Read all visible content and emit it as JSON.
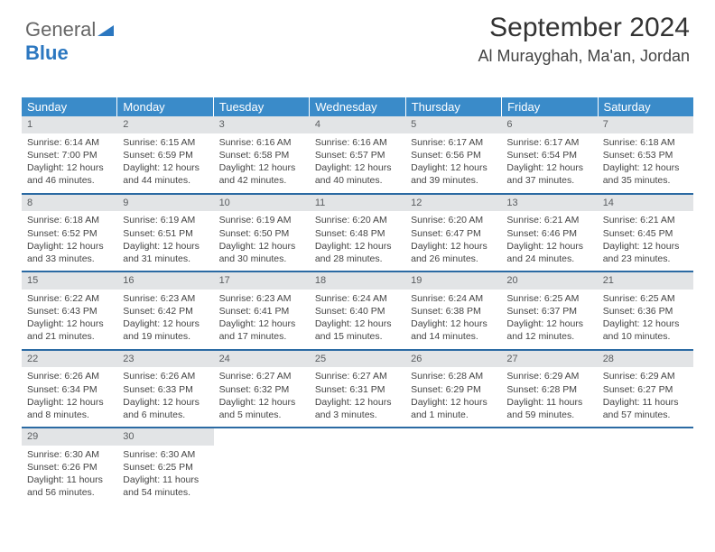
{
  "logo": {
    "part1": "General",
    "part2": "Blue"
  },
  "header": {
    "month_title": "September 2024",
    "location": "Al Murayghah, Ma'an, Jordan"
  },
  "colors": {
    "header_bg": "#3a8bc9",
    "row_border": "#2b6aa3",
    "daynum_bg": "#e2e4e6",
    "logo_blue": "#2b77c0"
  },
  "dow": [
    "Sunday",
    "Monday",
    "Tuesday",
    "Wednesday",
    "Thursday",
    "Friday",
    "Saturday"
  ],
  "days": [
    {
      "n": 1,
      "sr": "6:14 AM",
      "ss": "7:00 PM",
      "dl": "12 hours and 46 minutes."
    },
    {
      "n": 2,
      "sr": "6:15 AM",
      "ss": "6:59 PM",
      "dl": "12 hours and 44 minutes."
    },
    {
      "n": 3,
      "sr": "6:16 AM",
      "ss": "6:58 PM",
      "dl": "12 hours and 42 minutes."
    },
    {
      "n": 4,
      "sr": "6:16 AM",
      "ss": "6:57 PM",
      "dl": "12 hours and 40 minutes."
    },
    {
      "n": 5,
      "sr": "6:17 AM",
      "ss": "6:56 PM",
      "dl": "12 hours and 39 minutes."
    },
    {
      "n": 6,
      "sr": "6:17 AM",
      "ss": "6:54 PM",
      "dl": "12 hours and 37 minutes."
    },
    {
      "n": 7,
      "sr": "6:18 AM",
      "ss": "6:53 PM",
      "dl": "12 hours and 35 minutes."
    },
    {
      "n": 8,
      "sr": "6:18 AM",
      "ss": "6:52 PM",
      "dl": "12 hours and 33 minutes."
    },
    {
      "n": 9,
      "sr": "6:19 AM",
      "ss": "6:51 PM",
      "dl": "12 hours and 31 minutes."
    },
    {
      "n": 10,
      "sr": "6:19 AM",
      "ss": "6:50 PM",
      "dl": "12 hours and 30 minutes."
    },
    {
      "n": 11,
      "sr": "6:20 AM",
      "ss": "6:48 PM",
      "dl": "12 hours and 28 minutes."
    },
    {
      "n": 12,
      "sr": "6:20 AM",
      "ss": "6:47 PM",
      "dl": "12 hours and 26 minutes."
    },
    {
      "n": 13,
      "sr": "6:21 AM",
      "ss": "6:46 PM",
      "dl": "12 hours and 24 minutes."
    },
    {
      "n": 14,
      "sr": "6:21 AM",
      "ss": "6:45 PM",
      "dl": "12 hours and 23 minutes."
    },
    {
      "n": 15,
      "sr": "6:22 AM",
      "ss": "6:43 PM",
      "dl": "12 hours and 21 minutes."
    },
    {
      "n": 16,
      "sr": "6:23 AM",
      "ss": "6:42 PM",
      "dl": "12 hours and 19 minutes."
    },
    {
      "n": 17,
      "sr": "6:23 AM",
      "ss": "6:41 PM",
      "dl": "12 hours and 17 minutes."
    },
    {
      "n": 18,
      "sr": "6:24 AM",
      "ss": "6:40 PM",
      "dl": "12 hours and 15 minutes."
    },
    {
      "n": 19,
      "sr": "6:24 AM",
      "ss": "6:38 PM",
      "dl": "12 hours and 14 minutes."
    },
    {
      "n": 20,
      "sr": "6:25 AM",
      "ss": "6:37 PM",
      "dl": "12 hours and 12 minutes."
    },
    {
      "n": 21,
      "sr": "6:25 AM",
      "ss": "6:36 PM",
      "dl": "12 hours and 10 minutes."
    },
    {
      "n": 22,
      "sr": "6:26 AM",
      "ss": "6:34 PM",
      "dl": "12 hours and 8 minutes."
    },
    {
      "n": 23,
      "sr": "6:26 AM",
      "ss": "6:33 PM",
      "dl": "12 hours and 6 minutes."
    },
    {
      "n": 24,
      "sr": "6:27 AM",
      "ss": "6:32 PM",
      "dl": "12 hours and 5 minutes."
    },
    {
      "n": 25,
      "sr": "6:27 AM",
      "ss": "6:31 PM",
      "dl": "12 hours and 3 minutes."
    },
    {
      "n": 26,
      "sr": "6:28 AM",
      "ss": "6:29 PM",
      "dl": "12 hours and 1 minute."
    },
    {
      "n": 27,
      "sr": "6:29 AM",
      "ss": "6:28 PM",
      "dl": "11 hours and 59 minutes."
    },
    {
      "n": 28,
      "sr": "6:29 AM",
      "ss": "6:27 PM",
      "dl": "11 hours and 57 minutes."
    },
    {
      "n": 29,
      "sr": "6:30 AM",
      "ss": "6:26 PM",
      "dl": "11 hours and 56 minutes."
    },
    {
      "n": 30,
      "sr": "6:30 AM",
      "ss": "6:25 PM",
      "dl": "11 hours and 54 minutes."
    }
  ],
  "labels": {
    "sunrise": "Sunrise: ",
    "sunset": "Sunset: ",
    "daylight": "Daylight: "
  },
  "layout": {
    "start_dow": 0,
    "cells_per_row": 7
  }
}
